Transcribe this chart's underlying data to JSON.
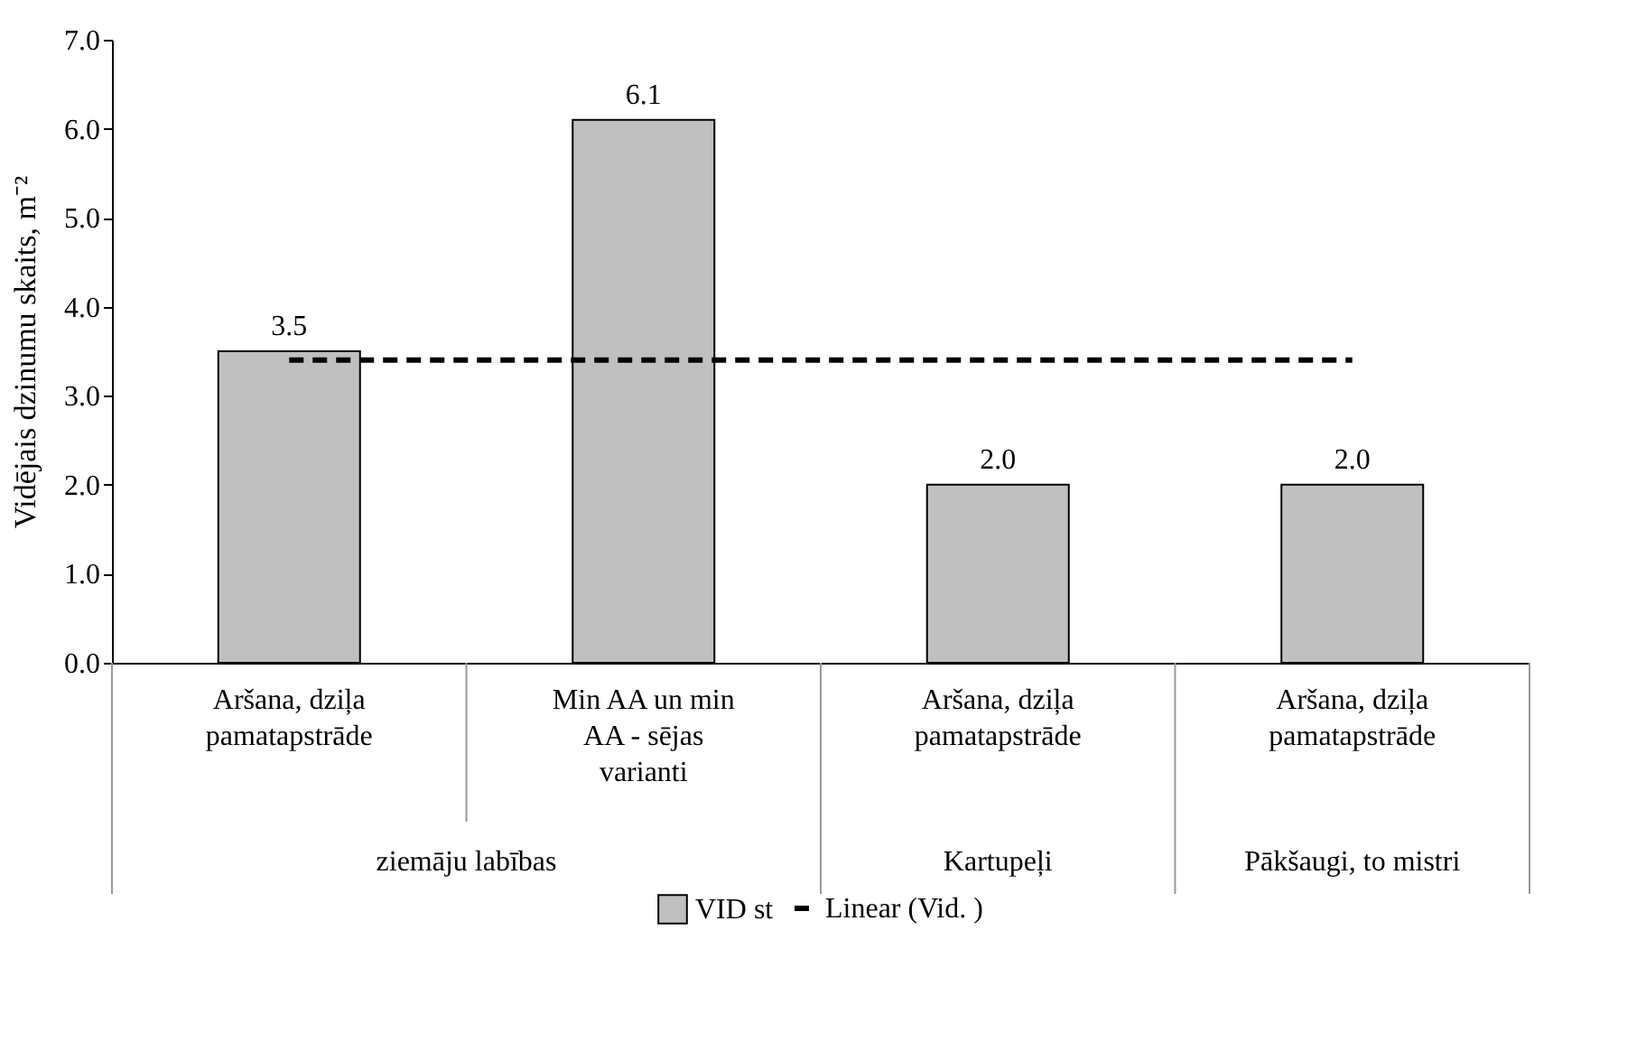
{
  "chart_data": {
    "type": "bar",
    "ylabel": "Vidējais dzinumu skaits, m⁻²",
    "categories": [
      "Aršana, dziļa pamatapstrāde",
      "Min AA un min AA -  sējas varianti",
      "Aršana, dziļa pamatapstrāde",
      "Aršana, dziļa pamatapstrāde"
    ],
    "annotations": [
      "ziemāju labības",
      "Kartupeļi",
      "Pākšaugi, to mistri"
    ],
    "series": [
      {
        "name": "VID st",
        "color": "#c0c0c0",
        "values": [
          3.5,
          6.1,
          2.0,
          2.0
        ],
        "value_labels": [
          "3.5",
          "6.1",
          "2.0",
          "2.0"
        ]
      },
      {
        "name": "Linear (Vid. )",
        "type": "line",
        "color": "#000000",
        "line_style": "dashed",
        "values": [
          3.4,
          3.4,
          3.4,
          3.4
        ]
      }
    ],
    "ylim": [
      0,
      7
    ],
    "yticks": [
      {
        "value": 0,
        "label": "0.0"
      },
      {
        "value": 1,
        "label": "1.0"
      },
      {
        "value": 2,
        "label": "2.0"
      },
      {
        "value": 3,
        "label": "3.0"
      },
      {
        "value": 4,
        "label": "4.0"
      },
      {
        "value": 5,
        "label": "5.0"
      },
      {
        "value": 6,
        "label": "6.0"
      },
      {
        "value": 7,
        "label": "7.0"
      }
    ],
    "grid": false,
    "legend": "bottom"
  }
}
